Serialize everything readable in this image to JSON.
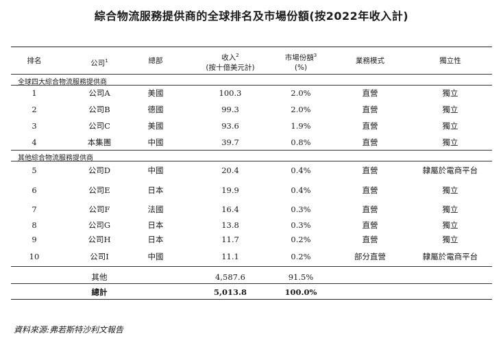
{
  "title": "綜合物流服務提供商的全球排名及市場份額(按2022年收入計)",
  "headers": {
    "rank": "排名",
    "company": "公司",
    "company_sup": "1",
    "hq": "總部",
    "revenue_line1": "收入",
    "revenue_sup": "2",
    "revenue_line2": "(按十億美元計)",
    "share_line1": "市場份額",
    "share_sup": "3",
    "share_line2": "(%)",
    "model": "業務模式",
    "independence": "獨立性"
  },
  "section1": "全球四大綜合物流服務提供商",
  "section2": "其他綜合物流服務提供商",
  "rows": [
    {
      "rank": "1",
      "company": "公司A",
      "hq": "美國",
      "revenue": "100.3",
      "share": "2.0%",
      "model": "直營",
      "independence": "獨立"
    },
    {
      "rank": "2",
      "company": "公司B",
      "hq": "德國",
      "revenue": "99.3",
      "share": "2.0%",
      "model": "直營",
      "independence": "獨立"
    },
    {
      "rank": "3",
      "company": "公司C",
      "hq": "美國",
      "revenue": "93.6",
      "share": "1.9%",
      "model": "直營",
      "independence": "獨立"
    },
    {
      "rank": "4",
      "company": "本集團",
      "hq": "中國",
      "revenue": "39.7",
      "share": "0.8%",
      "model": "直營",
      "independence": "獨立"
    },
    {
      "rank": "5",
      "company": "公司D",
      "hq": "中國",
      "revenue": "20.4",
      "share": "0.4%",
      "model": "直營",
      "independence": "隸屬於電商平台"
    },
    {
      "rank": "6",
      "company": "公司E",
      "hq": "日本",
      "revenue": "19.9",
      "share": "0.4%",
      "model": "直營",
      "independence": "獨立"
    },
    {
      "rank": "7",
      "company": "公司F",
      "hq": "法國",
      "revenue": "16.4",
      "share": "0.3%",
      "model": "直營",
      "independence": "獨立"
    },
    {
      "rank": "8",
      "company": "公司G",
      "hq": "日本",
      "revenue": "13.8",
      "share": "0.3%",
      "model": "直營",
      "independence": "獨立"
    },
    {
      "rank": "9",
      "company": "公司H",
      "hq": "日本",
      "revenue": "11.7",
      "share": "0.2%",
      "model": "直營",
      "independence": "獨立"
    },
    {
      "rank": "10",
      "company": "公司I",
      "hq": "中國",
      "revenue": "11.1",
      "share": "0.2%",
      "model": "部分直營",
      "independence": "隸屬於電商平台"
    }
  ],
  "others": {
    "label": "其他",
    "revenue": "4,587.6",
    "share": "91.5%"
  },
  "total": {
    "label": "總計",
    "revenue": "5,013.8",
    "share": "100.0%"
  },
  "source": "資料來源:弗若斯特沙利文報告"
}
